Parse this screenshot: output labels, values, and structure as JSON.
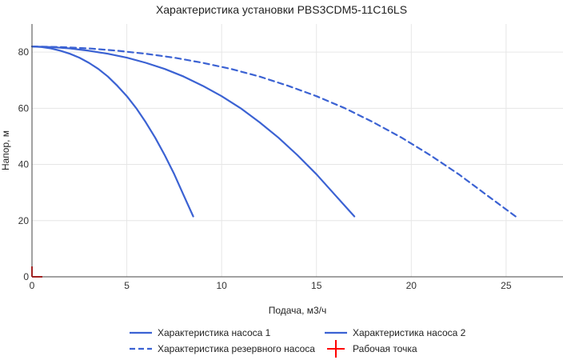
{
  "chart_data": {
    "type": "line",
    "title": "Характеристика установки PBS3CDM5-11C16LS",
    "xlabel": "Подача, м3/ч",
    "ylabel": "Напор, м",
    "xlim": [
      0,
      28
    ],
    "ylim": [
      0,
      90
    ],
    "xticks": [
      0,
      5,
      10,
      15,
      20,
      25
    ],
    "yticks": [
      0,
      20,
      40,
      60,
      80
    ],
    "grid": true,
    "legend_position": "bottom",
    "series": [
      {
        "name": "Характеристика насоса 1",
        "style": "solid",
        "color": "#3b62d3",
        "x": [
          0,
          0.5,
          1,
          1.5,
          2,
          2.5,
          3,
          3.5,
          4,
          4.5,
          5,
          5.5,
          6,
          6.5,
          7,
          7.5,
          8,
          8.5
        ],
        "y": [
          82,
          81.8,
          81.3,
          80.5,
          79.4,
          78,
          76.2,
          74,
          71.3,
          68,
          64.3,
          60,
          55,
          49.5,
          43.3,
          36.5,
          29,
          21.5
        ]
      },
      {
        "name": "Характеристика насоса 2",
        "style": "solid",
        "color": "#3b62d3",
        "x": [
          0,
          1,
          2,
          3,
          4,
          5,
          6,
          7,
          8,
          9,
          10,
          11,
          12,
          13,
          14,
          15,
          16,
          17
        ],
        "y": [
          82,
          81.8,
          81.3,
          80.5,
          79.4,
          78,
          76.2,
          74,
          71.3,
          68,
          64.3,
          60,
          55,
          49.5,
          43.3,
          36.5,
          29,
          21.5
        ]
      },
      {
        "name": "Характеристика резервного насоса",
        "style": "dashed",
        "color": "#3b62d3",
        "x": [
          0,
          1.5,
          3,
          4.5,
          6,
          7.5,
          9,
          10.5,
          12,
          13.5,
          15,
          16.5,
          18,
          19.5,
          21,
          22.5,
          24,
          25.5
        ],
        "y": [
          82,
          81.8,
          81.3,
          80.5,
          79.4,
          78,
          76.2,
          74,
          71.3,
          68,
          64.3,
          60,
          55,
          49.5,
          43.3,
          36.5,
          29,
          21.5
        ]
      },
      {
        "name": "Рабочая точка",
        "style": "marker",
        "color": "#ff0000",
        "x": [
          0
        ],
        "y": [
          0
        ]
      }
    ]
  }
}
